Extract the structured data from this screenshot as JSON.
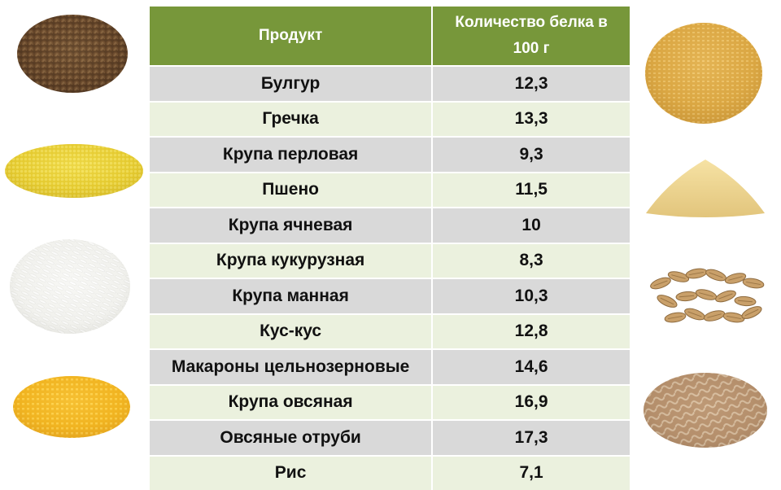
{
  "table": {
    "header_product": "Продукт",
    "header_protein": "Количество белка в 100 г",
    "rows": [
      {
        "product": "Булгур",
        "protein": "12,3"
      },
      {
        "product": "Гречка",
        "protein": "13,3"
      },
      {
        "product": "Крупа перловая",
        "protein": "9,3"
      },
      {
        "product": "Пшено",
        "protein": "11,5"
      },
      {
        "product": "Крупа ячневая",
        "protein": "10"
      },
      {
        "product": "Крупа кукурузная",
        "protein": "8,3"
      },
      {
        "product": "Крупа манная",
        "protein": "10,3"
      },
      {
        "product": "Кус-кус",
        "protein": "12,8"
      },
      {
        "product": "Макароны цельнозерновые",
        "protein": "14,6"
      },
      {
        "product": "Крупа овсяная",
        "protein": "16,9"
      },
      {
        "product": "Овсяные отруби",
        "protein": "17,3"
      },
      {
        "product": "Рис",
        "protein": "7,1"
      }
    ]
  },
  "images": {
    "left": [
      "buckwheat-image",
      "millet-image",
      "rice-image",
      "corn-grits-image"
    ],
    "right": [
      "bulgur-image",
      "semolina-image",
      "oat-grains-image",
      "whole-grain-pasta-image"
    ]
  },
  "colors": {
    "header": "#77973a",
    "row_gray": "#d9d9d9",
    "row_green": "#ebf1de"
  }
}
